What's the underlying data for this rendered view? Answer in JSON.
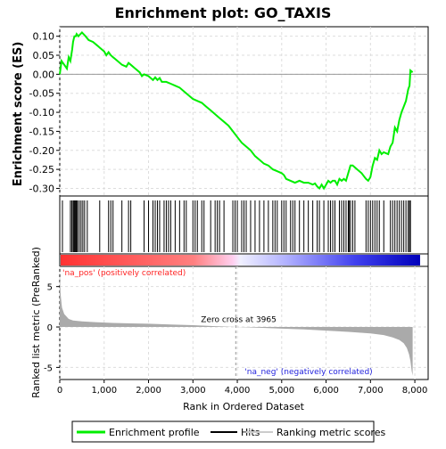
{
  "chart_data": {
    "type": "line",
    "title": "Enrichment plot: GO_TAXIS",
    "es_panel": {
      "ylabel": "Enrichment score (ES)",
      "ylim": [
        -0.32,
        0.125
      ],
      "yticks": [
        0.1,
        0.05,
        0.0,
        -0.05,
        -0.1,
        -0.15,
        -0.2,
        -0.25,
        -0.3
      ],
      "ytick_labels": [
        "0.10",
        "0.05",
        "0.00",
        "-0.05",
        "-0.10",
        "-0.15",
        "-0.20",
        "-0.25",
        "-0.30"
      ],
      "grid": true,
      "series": [
        {
          "name": "Enrichment profile",
          "color": "#00ee00",
          "x": [
            0,
            40,
            100,
            160,
            200,
            240,
            280,
            300,
            330,
            360,
            380,
            420,
            460,
            500,
            540,
            580,
            650,
            750,
            850,
            900,
            1000,
            1050,
            1100,
            1150,
            1200,
            1300,
            1400,
            1500,
            1550,
            1600,
            1700,
            1800,
            1850,
            1900,
            2000,
            2050,
            2100,
            2150,
            2200,
            2250,
            2300,
            2400,
            2500,
            2600,
            2700,
            2800,
            2900,
            3000,
            3100,
            3200,
            3300,
            3400,
            3500,
            3600,
            3700,
            3800,
            3900,
            4000,
            4100,
            4200,
            4300,
            4400,
            4500,
            4600,
            4700,
            4800,
            4900,
            5000,
            5050,
            5100,
            5200,
            5300,
            5400,
            5500,
            5600,
            5700,
            5750,
            5800,
            5850,
            5900,
            5950,
            6000,
            6050,
            6100,
            6150,
            6200,
            6250,
            6300,
            6350,
            6400,
            6450,
            6500,
            6550,
            6600,
            6700,
            6800,
            6900,
            6950,
            7000,
            7050,
            7100,
            7150,
            7200,
            7250,
            7300,
            7400,
            7450,
            7500,
            7550,
            7600,
            7650,
            7700,
            7750,
            7800,
            7850,
            7880,
            7900,
            7950
          ],
          "y": [
            0.0,
            0.035,
            0.025,
            0.015,
            0.045,
            0.035,
            0.065,
            0.085,
            0.1,
            0.1,
            0.106,
            0.1,
            0.105,
            0.11,
            0.105,
            0.1,
            0.09,
            0.085,
            0.075,
            0.07,
            0.06,
            0.05,
            0.058,
            0.05,
            0.045,
            0.035,
            0.025,
            0.02,
            0.03,
            0.025,
            0.015,
            0.005,
            -0.005,
            0.0,
            -0.005,
            -0.01,
            -0.015,
            -0.008,
            -0.015,
            -0.01,
            -0.02,
            -0.02,
            -0.025,
            -0.03,
            -0.035,
            -0.045,
            -0.055,
            -0.065,
            -0.07,
            -0.075,
            -0.085,
            -0.095,
            -0.105,
            -0.115,
            -0.125,
            -0.135,
            -0.15,
            -0.165,
            -0.18,
            -0.19,
            -0.2,
            -0.215,
            -0.225,
            -0.235,
            -0.24,
            -0.25,
            -0.255,
            -0.26,
            -0.265,
            -0.275,
            -0.28,
            -0.285,
            -0.28,
            -0.285,
            -0.285,
            -0.29,
            -0.287,
            -0.295,
            -0.3,
            -0.29,
            -0.3,
            -0.29,
            -0.28,
            -0.285,
            -0.28,
            -0.28,
            -0.29,
            -0.275,
            -0.28,
            -0.275,
            -0.28,
            -0.26,
            -0.24,
            -0.24,
            -0.25,
            -0.26,
            -0.275,
            -0.28,
            -0.27,
            -0.24,
            -0.22,
            -0.225,
            -0.2,
            -0.21,
            -0.205,
            -0.21,
            -0.19,
            -0.18,
            -0.14,
            -0.15,
            -0.12,
            -0.1,
            -0.085,
            -0.07,
            -0.04,
            -0.03,
            0.01,
            0.005
          ]
        }
      ]
    },
    "hits_panel": {
      "hit_positions": [
        60,
        240,
        270,
        300,
        320,
        340,
        360,
        380,
        400,
        440,
        480,
        520,
        560,
        620,
        900,
        1100,
        1150,
        1200,
        1400,
        1550,
        1600,
        1900,
        2000,
        2100,
        2150,
        2200,
        2250,
        2350,
        2400,
        2450,
        2500,
        2600,
        2700,
        2800,
        2850,
        3000,
        3050,
        3100,
        3200,
        3250,
        3400,
        3500,
        3550,
        3600,
        3700,
        3900,
        3950,
        4000,
        4100,
        4150,
        4200,
        4300,
        4400,
        4500,
        4600,
        4700,
        4800,
        4850,
        4900,
        5000,
        5050,
        5100,
        5200,
        5250,
        5300,
        5400,
        5500,
        5600,
        5700,
        5800,
        5850,
        5950,
        6050,
        6100,
        6150,
        6200,
        6300,
        6350,
        6400,
        6450,
        6500,
        6520,
        6550,
        6600,
        6650,
        6900,
        6950,
        7000,
        7050,
        7100,
        7150,
        7200,
        7300,
        7450,
        7500,
        7550,
        7600,
        7650,
        7700,
        7750,
        7800,
        7850,
        7880,
        7900
      ],
      "gradient": {
        "positive_color": "#ff0000",
        "negative_color": "#0000cc"
      }
    },
    "ranked_panel": {
      "ylabel": "Ranked list metric (PreRanked)",
      "xlabel": "Rank in Ordered Dataset",
      "xlim": [
        0,
        8300
      ],
      "xticks": [
        0,
        1000,
        2000,
        3000,
        4000,
        5000,
        6000,
        7000,
        8000
      ],
      "xtick_labels": [
        "0",
        "1,000",
        "2,000",
        "3,000",
        "4,000",
        "5,000",
        "6,000",
        "7,000",
        "8,000"
      ],
      "ylim": [
        -6.5,
        7.5
      ],
      "yticks": [
        5,
        0,
        -5
      ],
      "ytick_labels": [
        "5",
        "0",
        "-5"
      ],
      "zero_cross": 3965,
      "zero_cross_label": "Zero cross at 3965",
      "pos_label": "'na_pos' (positively correlated)",
      "neg_label": "'na_neg' (negatively correlated)",
      "pos_label_color": "#ff2222",
      "neg_label_color": "#2222dd",
      "fill_color": "#aaaaaa",
      "metric_curve": {
        "x": [
          0,
          20,
          50,
          100,
          200,
          300,
          500,
          800,
          1200,
          1600,
          2000,
          2500,
          3000,
          3500,
          3965,
          4500,
          5000,
          5500,
          6000,
          6500,
          7000,
          7300,
          7500,
          7650,
          7750,
          7820,
          7870,
          7900,
          7930,
          7950
        ],
        "y": [
          6.5,
          4.0,
          2.4,
          1.6,
          1.0,
          0.8,
          0.7,
          0.6,
          0.5,
          0.45,
          0.4,
          0.3,
          0.22,
          0.1,
          0.0,
          -0.1,
          -0.2,
          -0.3,
          -0.45,
          -0.6,
          -0.8,
          -1.0,
          -1.3,
          -1.6,
          -2.0,
          -2.6,
          -3.4,
          -4.2,
          -5.5,
          -6.0
        ]
      }
    },
    "legend": {
      "position": "bottom",
      "entries": [
        {
          "label": "Enrichment profile",
          "color": "#00ee00",
          "kind": "line"
        },
        {
          "label": "Hits",
          "color": "#000000",
          "kind": "line"
        },
        {
          "label": "Ranking metric scores",
          "color": "#cccccc",
          "kind": "line"
        }
      ]
    }
  }
}
